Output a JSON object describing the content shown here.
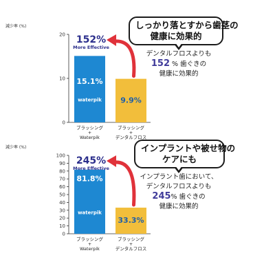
{
  "chart_data": [
    {
      "type": "bar",
      "ylabel": "減少率 (%)",
      "ylim": [
        0,
        20
      ],
      "yticks": [
        0,
        10,
        20
      ],
      "categories": [
        [
          "ブラッシング",
          "+",
          "Waterpik"
        ],
        [
          "ブラッシング",
          "+",
          "デンタルフロス"
        ]
      ],
      "values": [
        15.1,
        9.9
      ],
      "value_labels": [
        "15.1%",
        "9.9%"
      ],
      "bar_colors": [
        "#1e88d2",
        "#f2be3b"
      ],
      "brand_label": "waterpik",
      "headline": {
        "value": "152%",
        "caption": "More Effective"
      },
      "callout": [
        "しっかり落とすから歯茎の",
        "健康に効果的"
      ],
      "description": {
        "line1": "デンタルフロスよりも",
        "percent": "152",
        "suffix": " % 歯ぐきの",
        "line3": "健康に効果的"
      }
    },
    {
      "type": "bar",
      "ylabel": "減少率 (%)",
      "ylim": [
        0,
        100
      ],
      "yticks": [
        0,
        10,
        20,
        30,
        40,
        50,
        60,
        70,
        80,
        90,
        100
      ],
      "categories": [
        [
          "ブラッシング",
          "+",
          "Waterpik"
        ],
        [
          "ブラッシング",
          "+",
          "デンタルフロス"
        ]
      ],
      "values": [
        81.8,
        33.3
      ],
      "value_labels": [
        "81.8%",
        "33.3%"
      ],
      "bar_colors": [
        "#1e88d2",
        "#f2be3b"
      ],
      "brand_label": "waterpik",
      "headline": {
        "value": "245%",
        "caption": "More Effective"
      },
      "callout": [
        "インプラントや被せ物の",
        "ケアにも"
      ],
      "description": {
        "line1": "インプラント歯において、",
        "line2": "デンタルフロスよりも",
        "percent": "245",
        "suffix": "% 歯ぐきの",
        "line3": "健康に効果的"
      }
    }
  ],
  "colors": {
    "headline": "#2c2f8c",
    "arrow": "#e0323a",
    "axis": "#333333"
  }
}
